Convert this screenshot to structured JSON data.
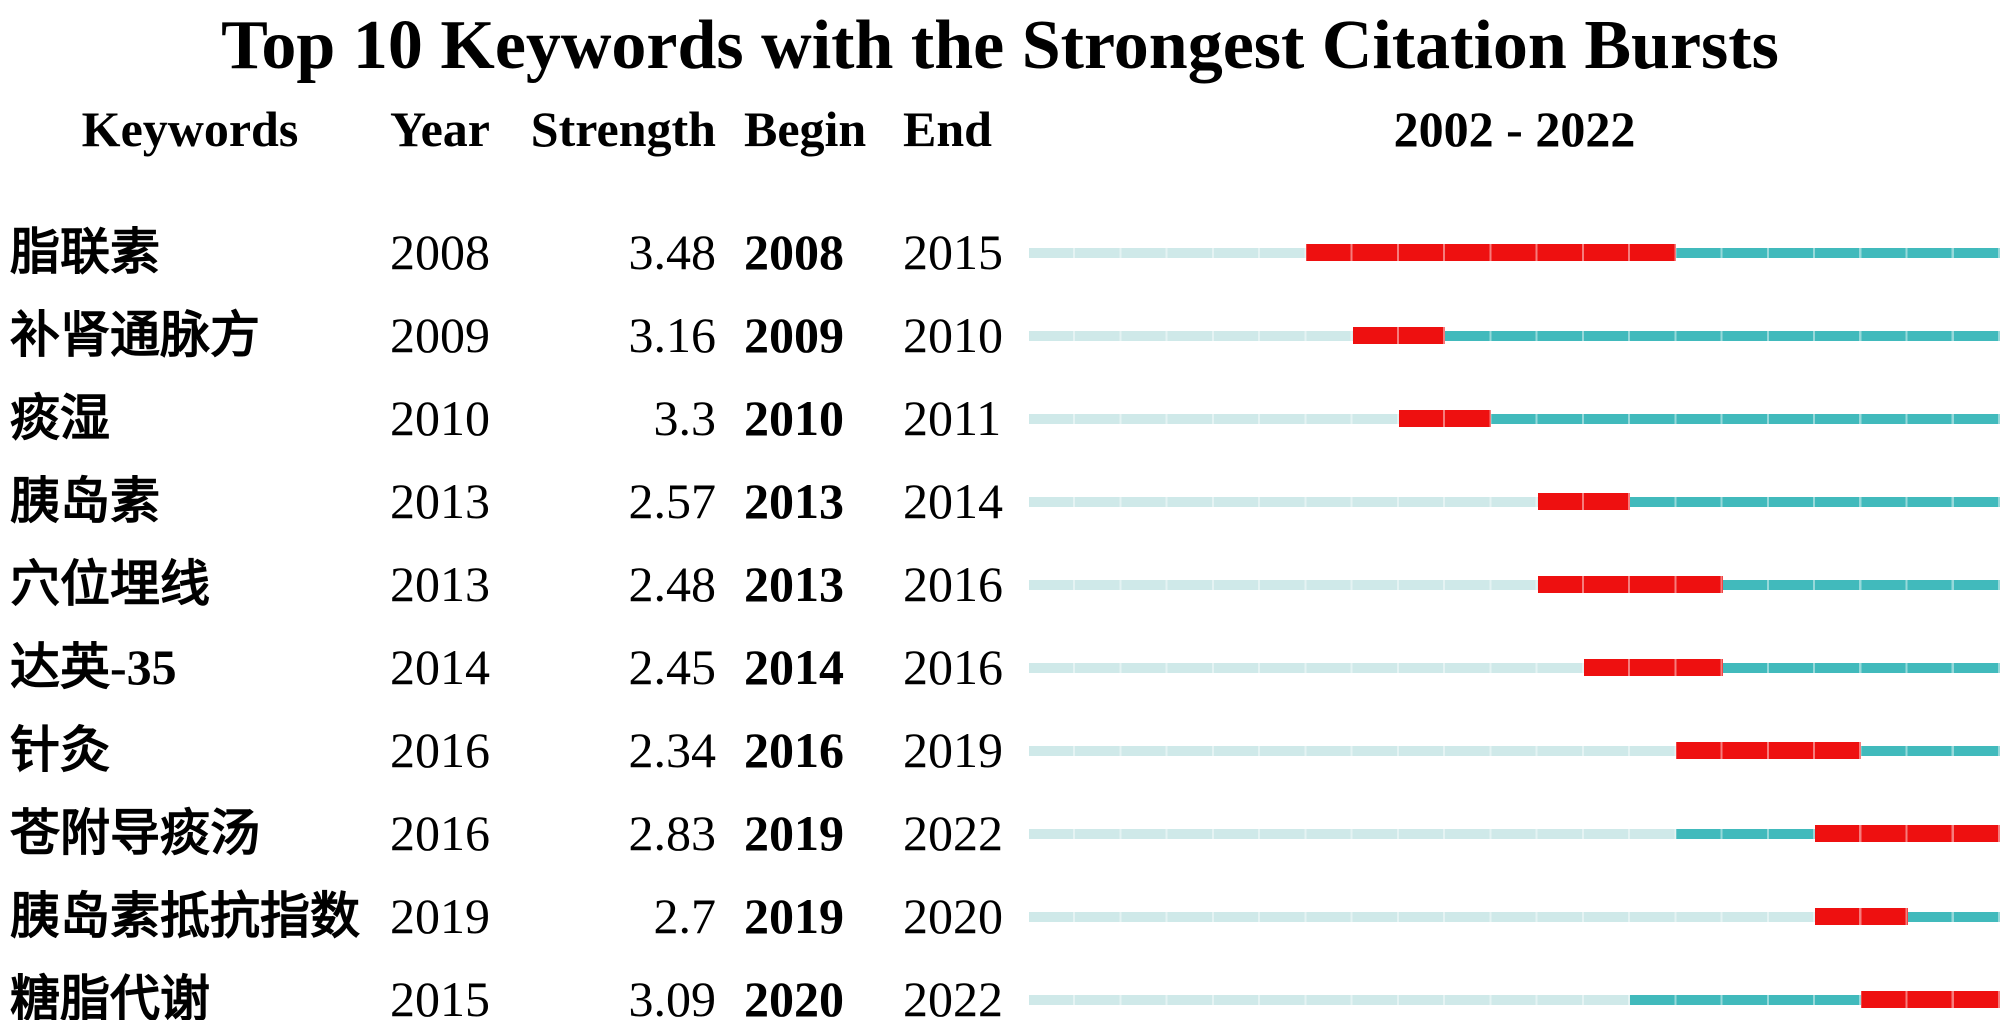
{
  "title": "Top 10 Keywords with the Strongest Citation Bursts",
  "table": {
    "headers": {
      "keywords": "Keywords",
      "year": "Year",
      "strength": "Strength",
      "begin": "Begin",
      "end": "End",
      "period": "2002 - 2022"
    }
  },
  "chart_data": {
    "type": "table",
    "title": "Top 10 Keywords with the Strongest Citation Bursts",
    "description": "CiteSpace citation-burst timeline table; each row shows a keyword with burst strength and a 2002-2022 timeline bar (pale = before first appearance, teal = active, red = burst period)",
    "columns": [
      "Keywords",
      "Year",
      "Strength",
      "Begin",
      "End"
    ],
    "year_range": [
      2002,
      2022
    ],
    "period_label": "2002 - 2022",
    "rows": [
      {
        "keyword": "脂联素",
        "year": 2008,
        "strength": "3.48",
        "begin": 2008,
        "end": 2015
      },
      {
        "keyword": "补肾通脉方",
        "year": 2009,
        "strength": "3.16",
        "begin": 2009,
        "end": 2010
      },
      {
        "keyword": "痰湿",
        "year": 2010,
        "strength": "3.3",
        "begin": 2010,
        "end": 2011
      },
      {
        "keyword": "胰岛素",
        "year": 2013,
        "strength": "2.57",
        "begin": 2013,
        "end": 2014
      },
      {
        "keyword": "穴位埋线",
        "year": 2013,
        "strength": "2.48",
        "begin": 2013,
        "end": 2016
      },
      {
        "keyword": "达英-35",
        "year": 2014,
        "strength": "2.45",
        "begin": 2014,
        "end": 2016
      },
      {
        "keyword": "针灸",
        "year": 2016,
        "strength": "2.34",
        "begin": 2016,
        "end": 2019
      },
      {
        "keyword": "苍附导痰汤",
        "year": 2016,
        "strength": "2.83",
        "begin": 2019,
        "end": 2022
      },
      {
        "keyword": "胰岛素抵抗指数",
        "year": 2019,
        "strength": "2.7",
        "begin": 2019,
        "end": 2020
      },
      {
        "keyword": "糖脂代谢",
        "year": 2015,
        "strength": "3.09",
        "begin": 2020,
        "end": 2022
      }
    ],
    "colors": {
      "pre_appearance": "#cfe9e9",
      "active": "#41babc",
      "burst": "#ee1010"
    },
    "legend_position": "none",
    "grid": false
  }
}
